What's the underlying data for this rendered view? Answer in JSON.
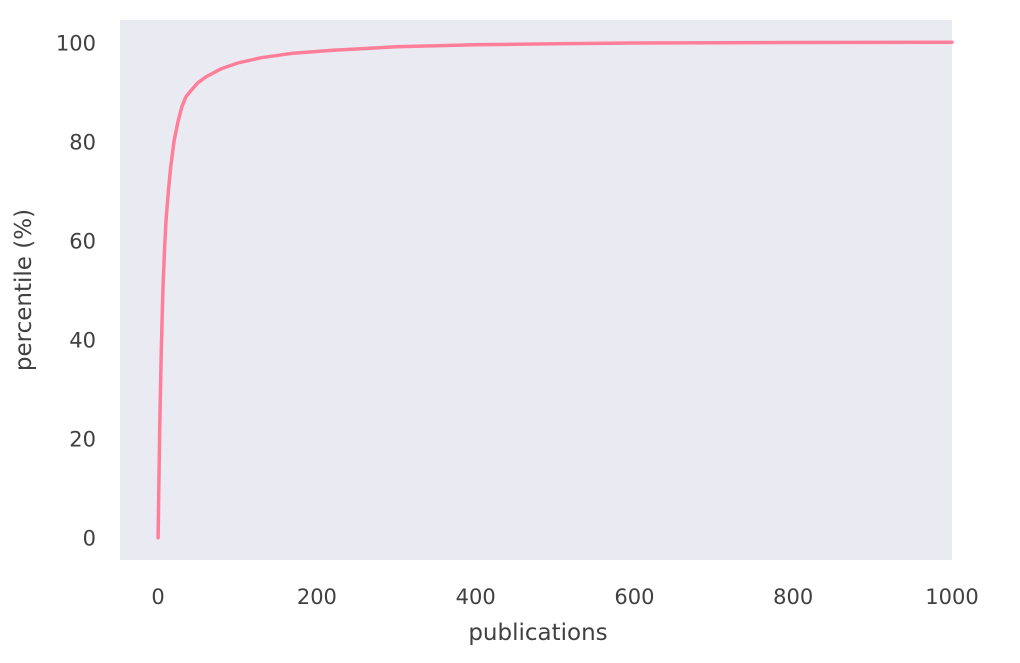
{
  "chart_data": {
    "type": "line",
    "title": "",
    "xlabel": "publications",
    "ylabel": "percentile (%)",
    "xlim": [
      -48,
      1000
    ],
    "ylim": [
      -4.5,
      104.5
    ],
    "xticks": [
      0,
      200,
      400,
      600,
      800,
      1000
    ],
    "yticks": [
      0,
      20,
      40,
      60,
      80,
      100
    ],
    "grid": false,
    "legend": "none",
    "background_color": "#eaeaf2",
    "series": [
      {
        "color": "#ff7f9a",
        "x": [
          0,
          2,
          4,
          6,
          8,
          10,
          13,
          16,
          20,
          25,
          30,
          35,
          40,
          50,
          60,
          80,
          100,
          130,
          170,
          220,
          300,
          400,
          500,
          600,
          800,
          1000
        ],
        "y": [
          0,
          22,
          38,
          50,
          58,
          64,
          70,
          75,
          80,
          84,
          87,
          89,
          90,
          91.8,
          93,
          94.7,
          95.8,
          96.9,
          97.8,
          98.4,
          99.1,
          99.5,
          99.7,
          99.85,
          99.95,
          100
        ]
      }
    ]
  }
}
